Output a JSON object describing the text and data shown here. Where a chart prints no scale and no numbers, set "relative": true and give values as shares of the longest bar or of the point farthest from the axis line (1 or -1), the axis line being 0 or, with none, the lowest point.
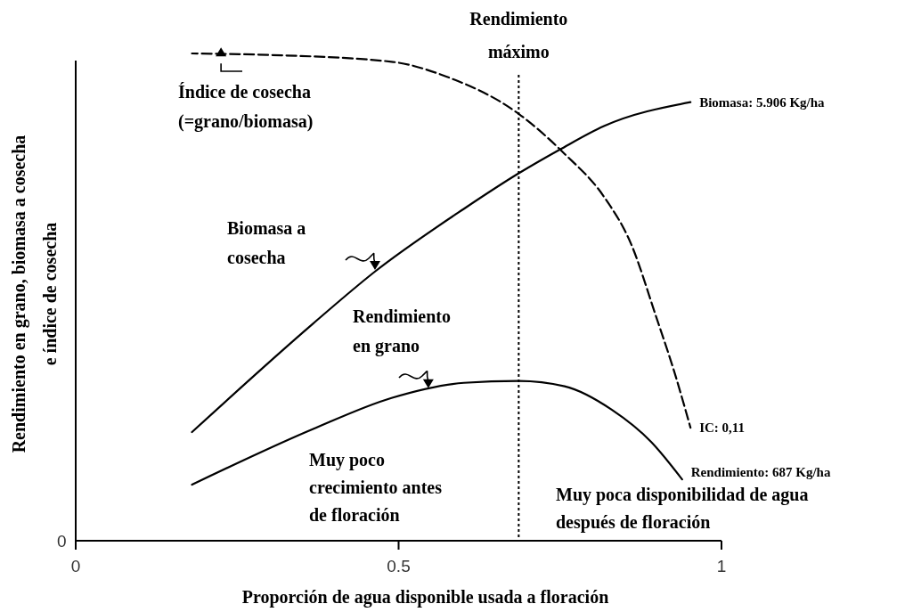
{
  "chart_data": {
    "type": "line",
    "relative": true,
    "xlabel": "Proporción de agua disponible usada a floración",
    "ylabel": "Rendimiento en grano, biomasa a cosecha\ne índice de cosecha",
    "xlim": [
      0,
      1
    ],
    "xticks": [
      0,
      0.5,
      1
    ],
    "legend": false,
    "marker": "none",
    "series": [
      {
        "name": "IC: 0,11",
        "color": "#000000",
        "line_style": "dashed",
        "x": [
          0.18,
          0.297,
          0.489,
          0.573,
          0.686,
          0.757,
          0.818,
          0.86,
          0.898,
          0.928,
          0.952
        ],
        "values": [
          1.0,
          0.997,
          0.983,
          0.953,
          0.876,
          0.794,
          0.706,
          0.609,
          0.463,
          0.342,
          0.232
        ]
      },
      {
        "name": "Biomasa: 5.906 Kg/ha",
        "color": "#000000",
        "line_style": "solid",
        "x": [
          0.18,
          0.367,
          0.464,
          0.601,
          0.686,
          0.75,
          0.818,
          0.952
        ],
        "values": [
          0.223,
          0.445,
          0.553,
          0.681,
          0.754,
          0.803,
          0.851,
          0.9
        ]
      },
      {
        "name": "Rendimiento: 687 Kg/ha",
        "color": "#000000",
        "line_style": "solid",
        "x": [
          0.18,
          0.367,
          0.489,
          0.601,
          0.686,
          0.757,
          0.83,
          0.891,
          0.939
        ],
        "values": [
          0.115,
          0.229,
          0.293,
          0.324,
          0.328,
          0.317,
          0.269,
          0.203,
          0.126
        ]
      }
    ],
    "ref_lines": [
      {
        "axis": "x",
        "value": 0.686,
        "label": "Rendimiento\nmáximo",
        "line_style": "dotted",
        "color": "#000000"
      }
    ],
    "annotations": [
      {
        "text": "Índice de cosecha\n(=grano/biomasa)",
        "x": 0.225,
        "y": 0.994
      },
      "Biomasa a\ncosecha",
      {
        "text": "Rendimiento\nen grano",
        "x": 0.546,
        "y": 0.313
      },
      "Muy poco\ncrecimiento antes\nde floración",
      "Muy poca disponibilidad de agua\ndespués de floración",
      "0"
    ]
  }
}
